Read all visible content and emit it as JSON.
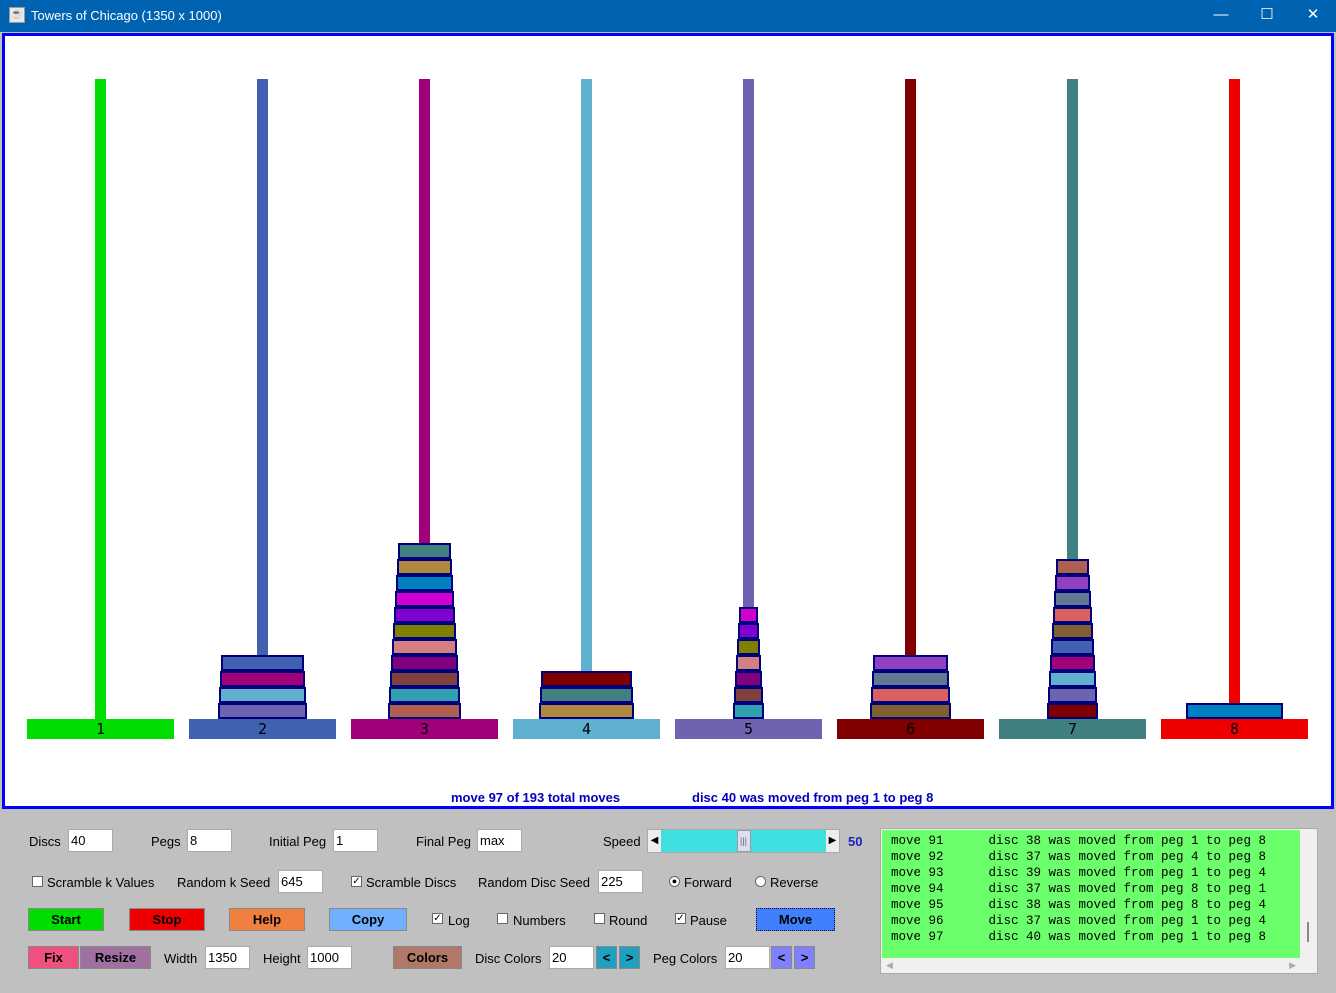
{
  "window": {
    "title": "Towers of Chicago  (1350  x  1000)",
    "minimize": "—",
    "maximize": "☐",
    "close": "✕"
  },
  "colors": {
    "peg_colors": [
      "#00dd00",
      "#4060b0",
      "#a0007a",
      "#60b0d0",
      "#6e63b0",
      "#800000",
      "#408080",
      "#ee0000"
    ],
    "canvas_border": "#0000ff",
    "log_bg": "#6bff6b"
  },
  "pegs": [
    {
      "label": "1",
      "discs": []
    },
    {
      "label": "2",
      "discs": [
        {
          "n": 36,
          "color": "#6e63b0"
        },
        {
          "n": 35,
          "color": "#60b0d0"
        },
        {
          "n": 34,
          "color": "#a0007a"
        },
        {
          "n": 33,
          "color": "#4060b0"
        }
      ]
    },
    {
      "label": "3",
      "discs": [
        {
          "n": 28,
          "color": "#b06050"
        },
        {
          "n": 27,
          "color": "#30a0b0"
        },
        {
          "n": 26,
          "color": "#804040"
        },
        {
          "n": 25,
          "color": "#800080"
        },
        {
          "n": 24,
          "color": "#d48080"
        },
        {
          "n": 23,
          "color": "#808000"
        },
        {
          "n": 22,
          "color": "#8000d0"
        },
        {
          "n": 21,
          "color": "#d000d0"
        },
        {
          "n": 20,
          "color": "#0080c0"
        },
        {
          "n": 19,
          "color": "#b08840"
        },
        {
          "n": 18,
          "color": "#408080"
        }
      ]
    },
    {
      "label": "4",
      "discs": [
        {
          "n": 39,
          "color": "#b08840"
        },
        {
          "n": 38,
          "color": "#408080"
        },
        {
          "n": 37,
          "color": "#800000"
        }
      ]
    },
    {
      "label": "5",
      "discs": [
        {
          "n": 7,
          "color": "#30a0b0"
        },
        {
          "n": 6,
          "color": "#804040"
        },
        {
          "n": 5,
          "color": "#800080"
        },
        {
          "n": 4,
          "color": "#d48080"
        },
        {
          "n": 3,
          "color": "#808000"
        },
        {
          "n": 2,
          "color": "#8000d0"
        },
        {
          "n": 1,
          "color": "#d000d0"
        }
      ]
    },
    {
      "label": "6",
      "discs": [
        {
          "n": 32,
          "color": "#806030"
        },
        {
          "n": 31,
          "color": "#d86060"
        },
        {
          "n": 30,
          "color": "#607890"
        },
        {
          "n": 29,
          "color": "#9040c0"
        }
      ]
    },
    {
      "label": "7",
      "discs": [
        {
          "n": 17,
          "color": "#800000"
        },
        {
          "n": 16,
          "color": "#6e63b0"
        },
        {
          "n": 15,
          "color": "#60b0d0"
        },
        {
          "n": 14,
          "color": "#a0007a"
        },
        {
          "n": 13,
          "color": "#4060b0"
        },
        {
          "n": 12,
          "color": "#806030"
        },
        {
          "n": 11,
          "color": "#d86060"
        },
        {
          "n": 10,
          "color": "#607890"
        },
        {
          "n": 9,
          "color": "#9040c0"
        },
        {
          "n": 8,
          "color": "#b06050"
        }
      ]
    },
    {
      "label": "8",
      "discs": [
        {
          "n": 40,
          "color": "#0080c0"
        }
      ]
    }
  ],
  "status": {
    "moves": "move 97 of 193 total moves",
    "last": "disc 40 was moved from peg 1 to peg 8"
  },
  "controls": {
    "discs_label": "Discs",
    "discs": "40",
    "pegs_label": "Pegs",
    "pegs": "8",
    "initial_label": "Initial Peg",
    "initial": "1",
    "final_label": "Final Peg",
    "final": "max",
    "speed_label": "Speed",
    "speed": "50",
    "speed_fraction": 0.5,
    "scramble_k": "Scramble k Values",
    "scramble_k_checked": false,
    "k_seed_label": "Random k Seed",
    "k_seed": "645",
    "scramble_discs": "Scramble Discs",
    "scramble_discs_checked": true,
    "disc_seed_label": "Random Disc Seed",
    "disc_seed": "225",
    "forward": "Forward",
    "reverse": "Reverse",
    "direction": "Forward",
    "start": "Start",
    "stop": "Stop",
    "help": "Help",
    "copy": "Copy",
    "log": "Log",
    "log_checked": true,
    "numbers": "Numbers",
    "numbers_checked": false,
    "round": "Round",
    "round_checked": false,
    "pause": "Pause",
    "pause_checked": true,
    "move": "Move",
    "fix": "Fix",
    "resize": "Resize",
    "width_label": "Width",
    "width": "1350",
    "height_label": "Height",
    "height": "1000",
    "colors": "Colors",
    "disc_colors_label": "Disc Colors",
    "disc_colors": "20",
    "peg_colors_label": "Peg Colors",
    "peg_colors": "20",
    "prev": "<",
    "next": ">"
  },
  "log": [
    "move 91      disc 38 was moved from peg 1 to peg 8",
    "move 92      disc 37 was moved from peg 4 to peg 8",
    "move 93      disc 39 was moved from peg 1 to peg 4",
    "move 94      disc 37 was moved from peg 8 to peg 1",
    "move 95      disc 38 was moved from peg 8 to peg 4",
    "move 96      disc 37 was moved from peg 1 to peg 4",
    "move 97      disc 40 was moved from peg 1 to peg 8"
  ]
}
